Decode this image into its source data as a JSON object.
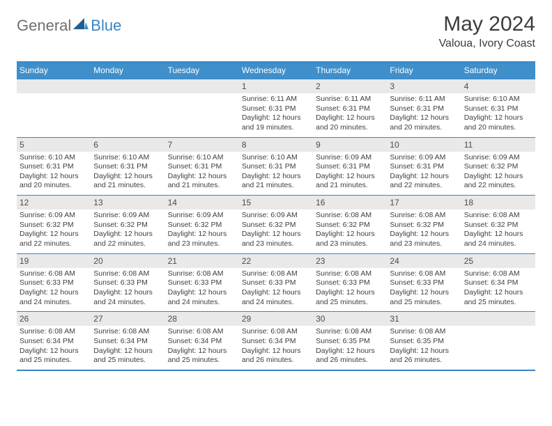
{
  "brand": {
    "part1": "General",
    "part2": "Blue"
  },
  "title": "May 2024",
  "location": "Valoua, Ivory Coast",
  "colors": {
    "accent": "#3f8fca",
    "border": "#3a84c4",
    "daynum_bg": "#e9e9ea",
    "text": "#3c3c3c"
  },
  "weekdays": [
    "Sunday",
    "Monday",
    "Tuesday",
    "Wednesday",
    "Thursday",
    "Friday",
    "Saturday"
  ],
  "grid": [
    [
      {
        "blank": true
      },
      {
        "blank": true
      },
      {
        "blank": true
      },
      {
        "n": "1",
        "sr": "6:11 AM",
        "ss": "6:31 PM",
        "dl": "12 hours and 19 minutes."
      },
      {
        "n": "2",
        "sr": "6:11 AM",
        "ss": "6:31 PM",
        "dl": "12 hours and 20 minutes."
      },
      {
        "n": "3",
        "sr": "6:11 AM",
        "ss": "6:31 PM",
        "dl": "12 hours and 20 minutes."
      },
      {
        "n": "4",
        "sr": "6:10 AM",
        "ss": "6:31 PM",
        "dl": "12 hours and 20 minutes."
      }
    ],
    [
      {
        "n": "5",
        "sr": "6:10 AM",
        "ss": "6:31 PM",
        "dl": "12 hours and 20 minutes."
      },
      {
        "n": "6",
        "sr": "6:10 AM",
        "ss": "6:31 PM",
        "dl": "12 hours and 21 minutes."
      },
      {
        "n": "7",
        "sr": "6:10 AM",
        "ss": "6:31 PM",
        "dl": "12 hours and 21 minutes."
      },
      {
        "n": "8",
        "sr": "6:10 AM",
        "ss": "6:31 PM",
        "dl": "12 hours and 21 minutes."
      },
      {
        "n": "9",
        "sr": "6:09 AM",
        "ss": "6:31 PM",
        "dl": "12 hours and 21 minutes."
      },
      {
        "n": "10",
        "sr": "6:09 AM",
        "ss": "6:31 PM",
        "dl": "12 hours and 22 minutes."
      },
      {
        "n": "11",
        "sr": "6:09 AM",
        "ss": "6:32 PM",
        "dl": "12 hours and 22 minutes."
      }
    ],
    [
      {
        "n": "12",
        "sr": "6:09 AM",
        "ss": "6:32 PM",
        "dl": "12 hours and 22 minutes."
      },
      {
        "n": "13",
        "sr": "6:09 AM",
        "ss": "6:32 PM",
        "dl": "12 hours and 22 minutes."
      },
      {
        "n": "14",
        "sr": "6:09 AM",
        "ss": "6:32 PM",
        "dl": "12 hours and 23 minutes."
      },
      {
        "n": "15",
        "sr": "6:09 AM",
        "ss": "6:32 PM",
        "dl": "12 hours and 23 minutes."
      },
      {
        "n": "16",
        "sr": "6:08 AM",
        "ss": "6:32 PM",
        "dl": "12 hours and 23 minutes."
      },
      {
        "n": "17",
        "sr": "6:08 AM",
        "ss": "6:32 PM",
        "dl": "12 hours and 23 minutes."
      },
      {
        "n": "18",
        "sr": "6:08 AM",
        "ss": "6:32 PM",
        "dl": "12 hours and 24 minutes."
      }
    ],
    [
      {
        "n": "19",
        "sr": "6:08 AM",
        "ss": "6:33 PM",
        "dl": "12 hours and 24 minutes."
      },
      {
        "n": "20",
        "sr": "6:08 AM",
        "ss": "6:33 PM",
        "dl": "12 hours and 24 minutes."
      },
      {
        "n": "21",
        "sr": "6:08 AM",
        "ss": "6:33 PM",
        "dl": "12 hours and 24 minutes."
      },
      {
        "n": "22",
        "sr": "6:08 AM",
        "ss": "6:33 PM",
        "dl": "12 hours and 24 minutes."
      },
      {
        "n": "23",
        "sr": "6:08 AM",
        "ss": "6:33 PM",
        "dl": "12 hours and 25 minutes."
      },
      {
        "n": "24",
        "sr": "6:08 AM",
        "ss": "6:33 PM",
        "dl": "12 hours and 25 minutes."
      },
      {
        "n": "25",
        "sr": "6:08 AM",
        "ss": "6:34 PM",
        "dl": "12 hours and 25 minutes."
      }
    ],
    [
      {
        "n": "26",
        "sr": "6:08 AM",
        "ss": "6:34 PM",
        "dl": "12 hours and 25 minutes."
      },
      {
        "n": "27",
        "sr": "6:08 AM",
        "ss": "6:34 PM",
        "dl": "12 hours and 25 minutes."
      },
      {
        "n": "28",
        "sr": "6:08 AM",
        "ss": "6:34 PM",
        "dl": "12 hours and 25 minutes."
      },
      {
        "n": "29",
        "sr": "6:08 AM",
        "ss": "6:34 PM",
        "dl": "12 hours and 26 minutes."
      },
      {
        "n": "30",
        "sr": "6:08 AM",
        "ss": "6:35 PM",
        "dl": "12 hours and 26 minutes."
      },
      {
        "n": "31",
        "sr": "6:08 AM",
        "ss": "6:35 PM",
        "dl": "12 hours and 26 minutes."
      },
      {
        "blank": true
      }
    ]
  ],
  "labels": {
    "sunrise": "Sunrise:",
    "sunset": "Sunset:",
    "daylight": "Daylight:"
  }
}
